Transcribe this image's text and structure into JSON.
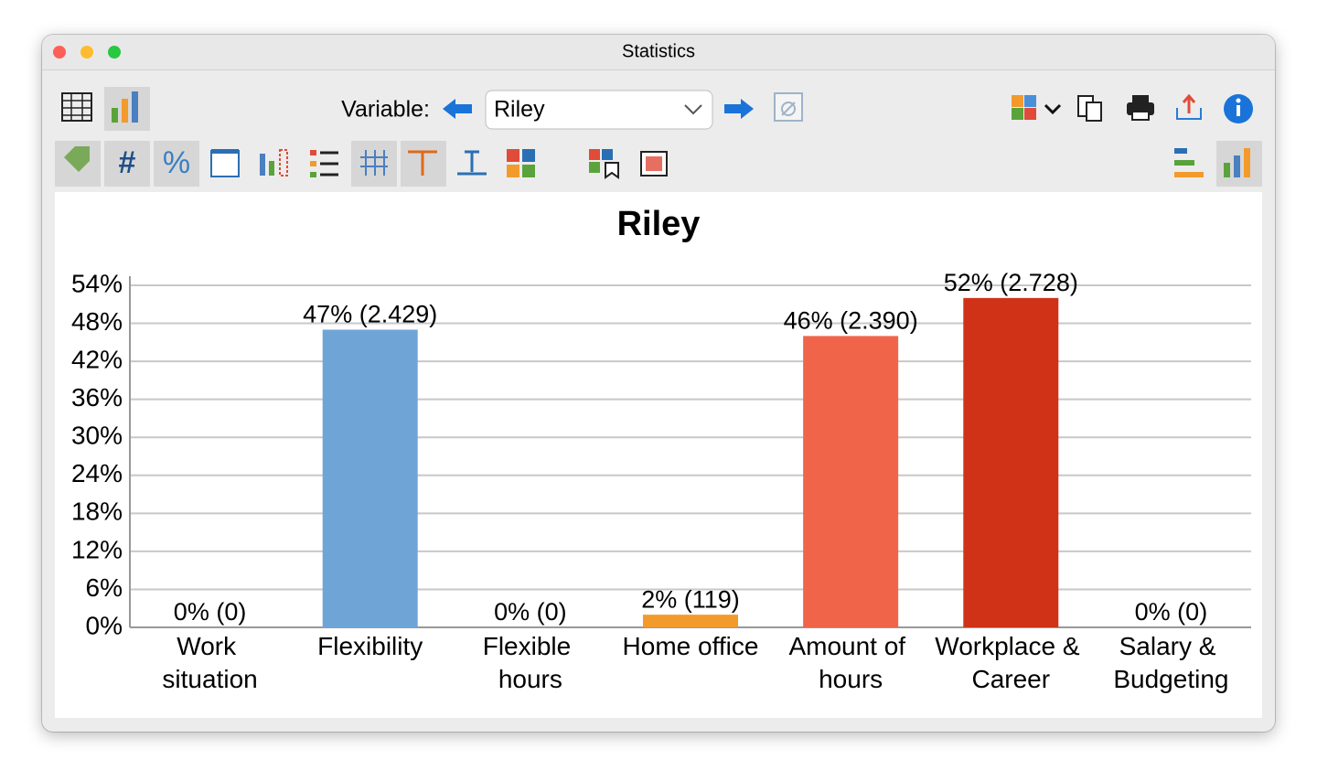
{
  "window": {
    "title": "Statistics"
  },
  "toolbar": {
    "variable_label": "Variable:",
    "variable_value": "Riley"
  },
  "chart_data": {
    "type": "bar",
    "title": "Riley",
    "categories": [
      "Work situation",
      "Flexibility",
      "Flexible hours",
      "Home office",
      "Amount of hours",
      "Workplace & Career",
      "Salary & Budgeting"
    ],
    "values": [
      0,
      47,
      0,
      2,
      46,
      52,
      0
    ],
    "value_labels": [
      "0% (0)",
      "47% (2.429)",
      "0% (0)",
      "2% (119)",
      "46% (2.390)",
      "52% (2.728)",
      "0% (0)"
    ],
    "colors": [
      null,
      "#6fa5d6",
      null,
      "#f39a2c",
      "#f0654a",
      "#d03218",
      null
    ],
    "ylim": [
      0,
      54
    ],
    "yticks": [
      {
        "value": 0,
        "label": "0%"
      },
      {
        "value": 6,
        "label": "6%"
      },
      {
        "value": 12,
        "label": "12%"
      },
      {
        "value": 18,
        "label": "18%"
      },
      {
        "value": 24,
        "label": "24%"
      },
      {
        "value": 30,
        "label": "30%"
      },
      {
        "value": 36,
        "label": "36%"
      },
      {
        "value": 42,
        "label": "42%"
      },
      {
        "value": 48,
        "label": "48%"
      },
      {
        "value": 54,
        "label": "54%"
      }
    ],
    "grid": true
  }
}
